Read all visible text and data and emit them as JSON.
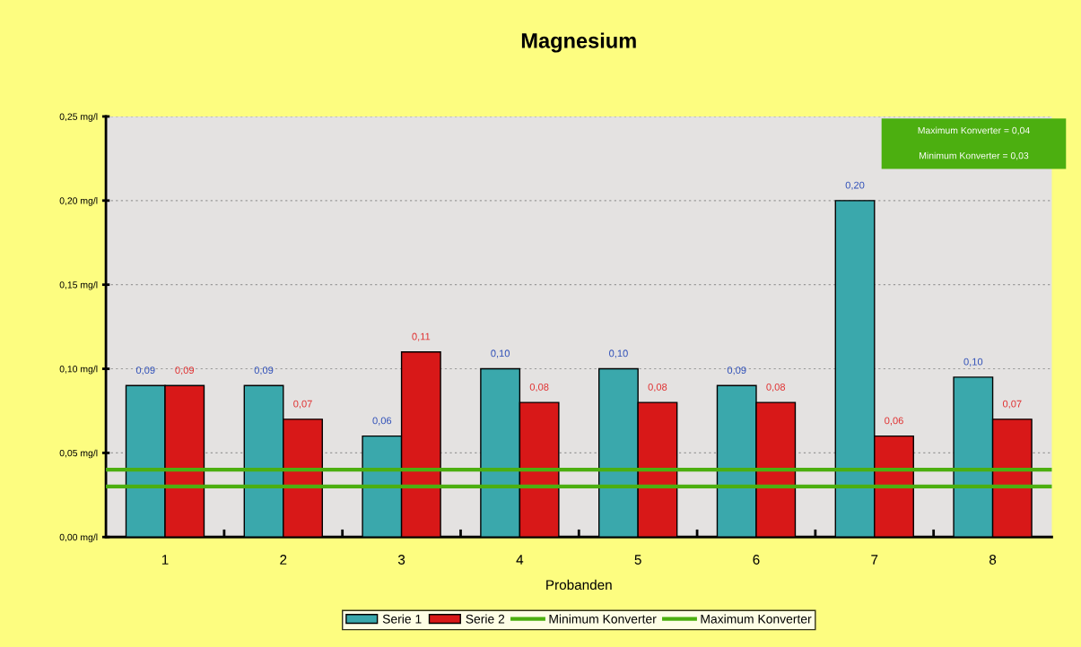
{
  "chart_data": {
    "type": "bar",
    "title": "Magnesium",
    "xlabel": "Probanden",
    "categories": [
      "1",
      "2",
      "3",
      "4",
      "5",
      "6",
      "7",
      "8"
    ],
    "series": [
      {
        "name": "Serie 1",
        "color": "#3aa8ac",
        "values": [
          0.09,
          0.09,
          0.06,
          0.1,
          0.1,
          0.09,
          0.2,
          0.095
        ],
        "value_labels": [
          "0,09",
          "0,09",
          "0,06",
          "0,10",
          "0,10",
          "0,09",
          "0,20",
          "0,10"
        ]
      },
      {
        "name": "Serie 2",
        "color": "#d81818",
        "values": [
          0.09,
          0.07,
          0.11,
          0.08,
          0.08,
          0.08,
          0.06,
          0.07
        ],
        "value_labels": [
          "0,09",
          "0,07",
          "0,11",
          "0,08",
          "0,08",
          "0,08",
          "0,06",
          "0,07"
        ]
      }
    ],
    "ref_lines": [
      {
        "axis": "y",
        "value": 0.03,
        "label": "Minimum Konverter",
        "color": "#4caf10"
      },
      {
        "axis": "y",
        "value": 0.04,
        "label": "Maximum Konverter",
        "color": "#4caf10"
      }
    ],
    "annotations": [
      "Maximum Konverter = 0,04",
      "Minimum Konverter = 0,03"
    ],
    "ylim": [
      0,
      0.25
    ],
    "yticks": [
      {
        "value": 0,
        "label": "0,00 mg/l"
      },
      {
        "value": 0.05,
        "label": "0,05 mg/l"
      },
      {
        "value": 0.1,
        "label": "0,10 mg/l"
      },
      {
        "value": 0.15,
        "label": "0,15 mg/l"
      },
      {
        "value": 0.2,
        "label": "0,20 mg/l"
      },
      {
        "value": 0.25,
        "label": "0,25 mg/l"
      }
    ],
    "grid": "y",
    "legend": "bottom"
  }
}
